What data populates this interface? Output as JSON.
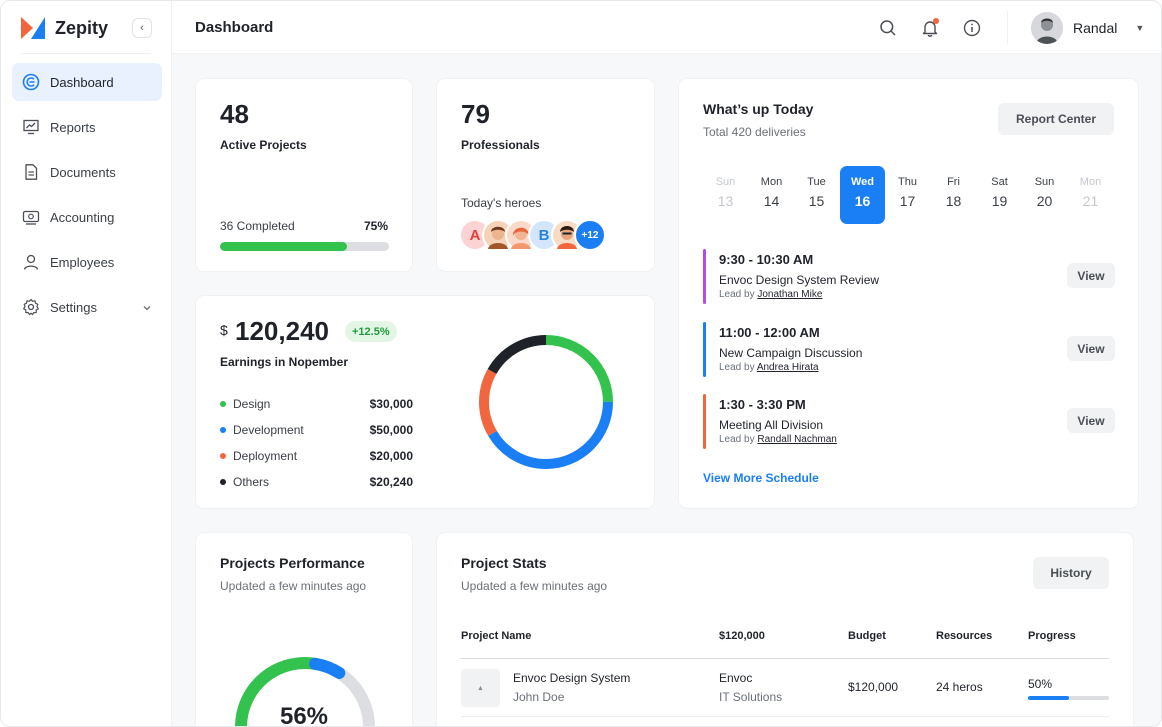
{
  "brand": {
    "name": "Zepity",
    "accent": "#1a7ef5",
    "logo_colors": [
      "#f2663f",
      "#1a7ef5"
    ]
  },
  "sidebar": {
    "collapse_icon": "chevron-left-icon",
    "items": [
      {
        "label": "Dashboard",
        "icon": "dashboard-icon",
        "active": true
      },
      {
        "label": "Reports",
        "icon": "reports-icon"
      },
      {
        "label": "Documents",
        "icon": "document-icon"
      },
      {
        "label": "Accounting",
        "icon": "accounting-icon"
      },
      {
        "label": "Employees",
        "icon": "user-icon"
      },
      {
        "label": "Settings",
        "icon": "gear-icon",
        "has_submenu": true
      }
    ]
  },
  "header": {
    "title": "Dashboard",
    "icons": [
      "search-icon",
      "bell-icon",
      "info-icon"
    ],
    "user": {
      "name": "Randal"
    }
  },
  "active_projects": {
    "value": "48",
    "label": "Active Projects",
    "completed_label": "36 Completed",
    "percent_label": "75%",
    "progress": 0.75
  },
  "professionals": {
    "value": "79",
    "label": "Professionals",
    "heroes_label": "Today's heroes",
    "heroes": [
      {
        "initial": "A",
        "bg": "#fbd3d3",
        "fg": "#e0423b"
      },
      {
        "initial": "",
        "bg": "#f6d2b8",
        "fg": "#a2572a"
      },
      {
        "initial": "",
        "bg": "#fbd9c9",
        "fg": "#e8683b"
      },
      {
        "initial": "B",
        "bg": "#d3e6fb",
        "fg": "#2a82d9"
      },
      {
        "initial": "",
        "bg": "#f7dcc6",
        "fg": "#ae5b32"
      }
    ],
    "more": "+12"
  },
  "earnings": {
    "currency": "$",
    "value": "120,240",
    "change": "+12.5%",
    "label": "Earnings in Nopember",
    "breakdown": [
      {
        "name": "Design",
        "amount": "$30,000",
        "color": "#32c24d"
      },
      {
        "name": "Development",
        "amount": "$50,000",
        "color": "#1a7ef5"
      },
      {
        "name": "Deployment",
        "amount": "$20,000",
        "color": "#f2663f"
      },
      {
        "name": "Others",
        "amount": "$20,240",
        "color": "#1f2329"
      }
    ]
  },
  "today": {
    "title": "What’s up Today",
    "subtitle": "Total 420 deliveries",
    "report_button": "Report Center",
    "days": [
      {
        "name": "Sun",
        "date": "13",
        "state": "dim"
      },
      {
        "name": "Mon",
        "date": "14",
        "state": "normal"
      },
      {
        "name": "Tue",
        "date": "15",
        "state": "normal"
      },
      {
        "name": "Wed",
        "date": "16",
        "state": "selected"
      },
      {
        "name": "Thu",
        "date": "17",
        "state": "normal"
      },
      {
        "name": "Fri",
        "date": "18",
        "state": "normal"
      },
      {
        "name": "Sat",
        "date": "19",
        "state": "normal"
      },
      {
        "name": "Sun",
        "date": "20",
        "state": "normal"
      },
      {
        "name": "Mon",
        "date": "21",
        "state": "dim"
      }
    ],
    "schedule": [
      {
        "time": "9:30 - 10:30 AM",
        "name": "Envoc Design System Review",
        "lead_prefix": "Lead by",
        "lead": "Jonathan Mike",
        "color": "#b44be8",
        "action": "View"
      },
      {
        "time": "11:00 - 12:00 AM",
        "name": "New Campaign Discussion",
        "lead_prefix": "Lead by",
        "lead": "Andrea Hirata",
        "color": "#1a7ef5",
        "action": "View"
      },
      {
        "time": "1:30 - 3:30 PM",
        "name": "Meeting All Division",
        "lead_prefix": "Lead by",
        "lead": "Randall Nachman",
        "color": "#f2663f",
        "action": "View"
      }
    ],
    "more_link": "View More Schedule"
  },
  "performance": {
    "title": "Projects Performance",
    "subtitle": "Updated a few minutes ago",
    "value_label": "56%",
    "value": 0.56
  },
  "stats": {
    "title": "Project Stats",
    "subtitle": "Updated a few minutes ago",
    "history_button": "History",
    "columns": [
      "Project Name",
      "$120,000",
      "Budget",
      "Resources",
      "Progress"
    ],
    "rows": [
      {
        "project": "Envoc Design System",
        "owner": "John Doe",
        "client": "Envoc",
        "client_sub": "IT Solutions",
        "budget": "$120,000",
        "resources": "24 heros",
        "progress_label": "50%",
        "progress": 0.5
      }
    ]
  }
}
